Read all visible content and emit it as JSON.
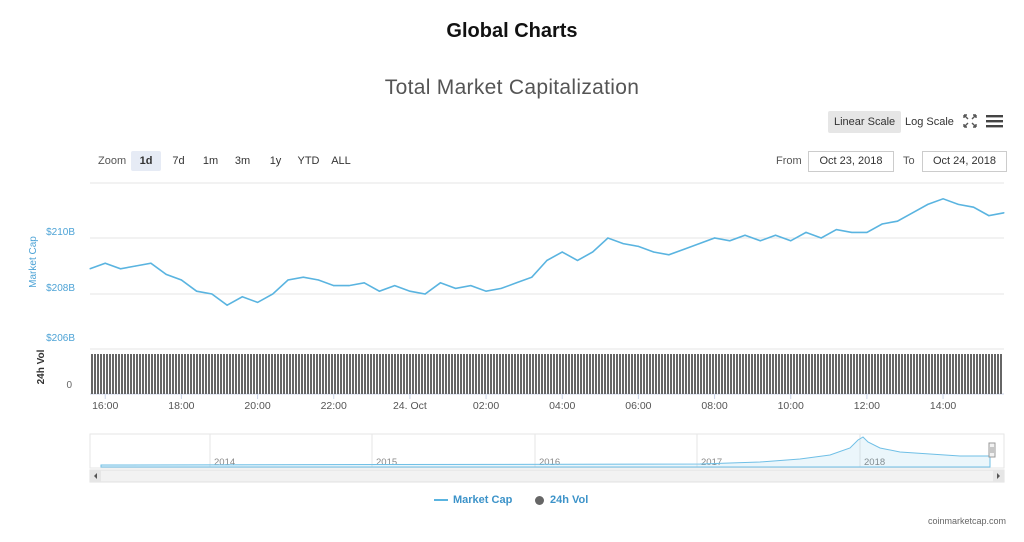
{
  "page_title": "Global Charts",
  "chart_title": "Total Market Capitalization",
  "scale_buttons": {
    "linear": "Linear Scale",
    "log": "Log Scale"
  },
  "zoom": {
    "label": "Zoom",
    "buttons": [
      "1d",
      "7d",
      "1m",
      "3m",
      "1y",
      "YTD",
      "ALL"
    ],
    "active": "1d"
  },
  "range": {
    "from_label": "From",
    "from_value": "Oct 23, 2018",
    "to_label": "To",
    "to_value": "Oct 24, 2018"
  },
  "legend": {
    "market_cap": "Market Cap",
    "vol": "24h Vol"
  },
  "credit": "coinmarketcap.com",
  "colors": {
    "line": "#5ab4e0",
    "axis_text": "#4da3d6",
    "volume": "#666666",
    "accent_bg": "#e6ebf5"
  },
  "chart_data": {
    "type": "line",
    "title": "Total Market Capitalization",
    "y_axis": {
      "label": "Market Cap",
      "ticks": [
        "$210B",
        "$208B",
        "$206B"
      ],
      "tick_values": [
        210,
        208,
        206
      ],
      "unit": "B USD"
    },
    "vol_axis": {
      "label": "24h Vol",
      "ticks": [
        "0"
      ]
    },
    "x_ticks": [
      "16:00",
      "18:00",
      "20:00",
      "22:00",
      "24. Oct",
      "02:00",
      "04:00",
      "06:00",
      "08:00",
      "10:00",
      "12:00",
      "14:00"
    ],
    "x_tick_hours": [
      16,
      18,
      20,
      22,
      24,
      26,
      28,
      30,
      32,
      34,
      36,
      38
    ],
    "x_range_hours": [
      15.6,
      39.6
    ],
    "market_cap": {
      "name": "Market Cap",
      "hours": [
        15.6,
        16.0,
        16.4,
        16.8,
        17.2,
        17.6,
        18.0,
        18.4,
        18.8,
        19.2,
        19.6,
        20.0,
        20.4,
        20.8,
        21.2,
        21.6,
        22.0,
        22.4,
        22.8,
        23.2,
        23.6,
        24.0,
        24.4,
        24.8,
        25.2,
        25.6,
        26.0,
        26.4,
        26.8,
        27.2,
        27.6,
        28.0,
        28.4,
        28.8,
        29.2,
        29.6,
        30.0,
        30.4,
        30.8,
        31.2,
        31.6,
        32.0,
        32.4,
        32.8,
        33.2,
        33.6,
        34.0,
        34.4,
        34.8,
        35.2,
        35.6,
        36.0,
        36.4,
        36.8,
        37.2,
        37.6,
        38.0,
        38.4,
        38.8,
        39.2,
        39.6
      ],
      "values": [
        208.9,
        209.1,
        208.9,
        209.0,
        209.1,
        208.7,
        208.5,
        208.1,
        208.0,
        207.6,
        207.9,
        207.7,
        208.0,
        208.5,
        208.6,
        208.5,
        208.3,
        208.3,
        208.4,
        208.1,
        208.3,
        208.1,
        208.0,
        208.4,
        208.2,
        208.3,
        208.1,
        208.2,
        208.4,
        208.6,
        209.2,
        209.5,
        209.2,
        209.5,
        210.0,
        209.8,
        209.7,
        209.5,
        209.4,
        209.6,
        209.8,
        210.0,
        209.9,
        210.1,
        209.9,
        210.1,
        209.9,
        210.2,
        210.0,
        210.3,
        210.2,
        210.2,
        210.5,
        210.6,
        210.9,
        211.2,
        211.4,
        211.2,
        211.1,
        210.8,
        210.9
      ]
    }
  }
}
